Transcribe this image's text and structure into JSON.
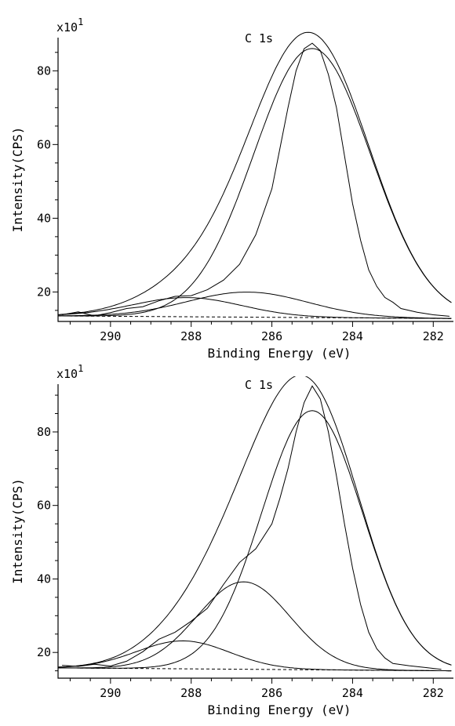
{
  "chart_data": [
    {
      "type": "line",
      "title": "C 1s",
      "xlabel": "Binding Energy (eV)",
      "ylabel": "Intensity(CPS)",
      "multiplier": "x10",
      "multiplier_exp": "1",
      "xlim": [
        291.3,
        281.5
      ],
      "ylim": [
        12,
        89
      ],
      "xticks": [
        290,
        288,
        286,
        284,
        282
      ],
      "yticks": [
        20,
        40,
        60,
        80
      ],
      "x_reversed": true,
      "grid": false,
      "background_line": {
        "x": [
          291.3,
          281.5
        ],
        "y": [
          13.5,
          12.8
        ]
      },
      "components": [
        {
          "center": 285.0,
          "height": 73.0,
          "width": 1.45
        },
        {
          "center": 286.6,
          "height": 6.8,
          "width": 1.5
        },
        {
          "center": 288.1,
          "height": 5.2,
          "width": 1.35
        }
      ],
      "raw_points": {
        "x": [
          291.2,
          290.8,
          290.4,
          290.0,
          289.6,
          289.2,
          288.8,
          288.4,
          288.0,
          287.6,
          287.2,
          286.8,
          286.4,
          286.0,
          285.8,
          285.6,
          285.4,
          285.2,
          285.0,
          284.8,
          284.6,
          284.4,
          284.2,
          284.0,
          283.8,
          283.6,
          283.4,
          283.2,
          283.0,
          282.8,
          282.4,
          282.0,
          281.6
        ],
        "y": [
          13.8,
          14.6,
          13.5,
          14.4,
          15.5,
          16.0,
          17.6,
          18.8,
          19.0,
          20.6,
          23.2,
          27.5,
          35.5,
          48.0,
          59.0,
          70.0,
          80.0,
          86.0,
          87.5,
          85.5,
          79.0,
          70.0,
          57.0,
          44.0,
          34.0,
          26.0,
          21.5,
          18.5,
          17.2,
          15.5,
          14.5,
          13.8,
          13.4
        ]
      }
    },
    {
      "type": "line",
      "title": "C 1s",
      "xlabel": "Binding Energy (eV)",
      "ylabel": "Intensity(CPS)",
      "multiplier": "x10",
      "multiplier_exp": "1",
      "xlim": [
        291.3,
        281.5
      ],
      "ylim": [
        13,
        93
      ],
      "xticks": [
        290,
        288,
        286,
        284,
        282
      ],
      "yticks": [
        20,
        40,
        60,
        80
      ],
      "x_reversed": true,
      "grid": false,
      "background_line": {
        "x": [
          291.3,
          281.5
        ],
        "y": [
          15.8,
          15.0
        ]
      },
      "components": [
        {
          "center": 285.0,
          "height": 70.5,
          "width": 1.25
        },
        {
          "center": 286.7,
          "height": 23.8,
          "width": 1.15
        },
        {
          "center": 288.2,
          "height": 7.6,
          "width": 1.15
        }
      ],
      "raw_points": {
        "x": [
          291.2,
          290.8,
          290.4,
          290.0,
          289.6,
          289.2,
          288.8,
          288.4,
          288.0,
          287.6,
          287.2,
          286.8,
          286.4,
          286.0,
          285.8,
          285.6,
          285.4,
          285.2,
          285.0,
          284.8,
          284.6,
          284.4,
          284.2,
          284.0,
          283.8,
          283.6,
          283.4,
          283.2,
          283.0,
          282.6,
          282.2,
          281.8
        ],
        "y": [
          16.5,
          16.2,
          16.8,
          16.3,
          17.6,
          20.2,
          23.6,
          25.5,
          28.5,
          32.0,
          38.5,
          44.5,
          48.2,
          55.0,
          62.0,
          70.0,
          80.0,
          88.0,
          92.5,
          89.0,
          80.0,
          68.0,
          55.0,
          43.0,
          33.0,
          25.5,
          21.0,
          18.5,
          17.0,
          16.4,
          15.9,
          15.4
        ]
      }
    }
  ]
}
